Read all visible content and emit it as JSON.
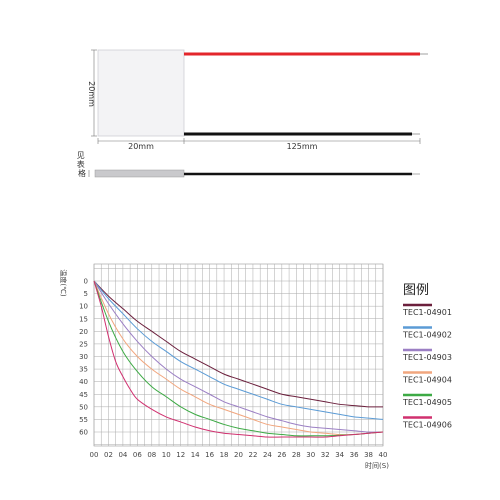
{
  "diagram": {
    "label_height": "20mm",
    "label_width": "20mm",
    "label_lead": "125mm",
    "label_thickness": "见表格",
    "colors": {
      "red_wire": "#e3262b",
      "black_wire": "#111111",
      "module": "#f3f3f5"
    }
  },
  "chart_data": {
    "type": "line",
    "xlabel": "时间(S)",
    "ylabel": "温度(℃)",
    "x_ticks": [
      "00",
      "02",
      "04",
      "06",
      "08",
      "10",
      "12",
      "14",
      "16",
      "18",
      "20",
      "22",
      "24",
      "26",
      "28",
      "30",
      "32",
      "34",
      "36",
      "38",
      "40"
    ],
    "y_ticks": [
      "0",
      "5",
      "10",
      "15",
      "20",
      "25",
      "30",
      "35",
      "40",
      "45",
      "50",
      "55",
      "60"
    ],
    "xlim": [
      0,
      40
    ],
    "ylim": [
      0,
      60
    ],
    "y_inverted": true,
    "grid": true,
    "legend_title": "图例",
    "legend_position": "right",
    "series": [
      {
        "name": "TEC1-04901",
        "color": "#6b1f3c",
        "x": [
          0,
          2,
          4,
          6,
          8,
          10,
          12,
          14,
          16,
          18,
          20,
          22,
          24,
          26,
          28,
          30,
          32,
          34,
          36,
          38,
          40
        ],
        "y": [
          0,
          6,
          11,
          16,
          20,
          24,
          28,
          31,
          34,
          37,
          39,
          41,
          43,
          45,
          46,
          47,
          48,
          49,
          49.5,
          50,
          50
        ]
      },
      {
        "name": "TEC1-04902",
        "color": "#5b9bd5",
        "x": [
          0,
          2,
          4,
          6,
          8,
          10,
          12,
          14,
          16,
          18,
          20,
          22,
          24,
          26,
          28,
          30,
          32,
          34,
          36,
          38,
          40
        ],
        "y": [
          0,
          7,
          13,
          19,
          24,
          28,
          32,
          35,
          38,
          41,
          43,
          45,
          47,
          49,
          50,
          51,
          52,
          53,
          54,
          54.5,
          55
        ]
      },
      {
        "name": "TEC1-04903",
        "color": "#9b7fc4",
        "x": [
          0,
          2,
          4,
          6,
          8,
          10,
          12,
          14,
          16,
          18,
          20,
          22,
          24,
          26,
          28,
          30,
          32,
          34,
          36,
          38,
          40
        ],
        "y": [
          0,
          9,
          17,
          24,
          30,
          35,
          39,
          42,
          45,
          48,
          50,
          52,
          54,
          55.5,
          57,
          58,
          58.5,
          59,
          59.5,
          60,
          60
        ]
      },
      {
        "name": "TEC1-04904",
        "color": "#f1a67e",
        "x": [
          0,
          2,
          4,
          6,
          8,
          10,
          12,
          14,
          16,
          18,
          20,
          22,
          24,
          26,
          28,
          30,
          32,
          34,
          36,
          38,
          40
        ],
        "y": [
          0,
          13,
          23,
          30,
          35,
          39,
          43,
          46,
          49,
          51,
          53,
          55,
          57,
          58,
          59,
          60,
          60.5,
          61,
          61,
          60.5,
          60
        ]
      },
      {
        "name": "TEC1-04905",
        "color": "#3daa45",
        "x": [
          0,
          2,
          4,
          6,
          8,
          10,
          12,
          14,
          16,
          18,
          20,
          22,
          24,
          26,
          28,
          30,
          32,
          34,
          36,
          38,
          40
        ],
        "y": [
          0,
          16,
          28,
          36,
          42,
          46,
          50,
          53,
          55,
          57,
          58.5,
          59.5,
          60.5,
          61,
          61.5,
          61.5,
          61.5,
          61.3,
          61,
          60.5,
          60
        ]
      },
      {
        "name": "TEC1-04906",
        "color": "#d0306f",
        "x": [
          0,
          1,
          2,
          3,
          4,
          5,
          6,
          8,
          10,
          12,
          14,
          16,
          18,
          20,
          22,
          24,
          26,
          28,
          30,
          32,
          34,
          36,
          38,
          40
        ],
        "y": [
          0,
          10,
          22,
          32,
          38,
          43,
          47,
          51,
          54,
          56,
          58,
          59.5,
          60.5,
          61,
          61.5,
          62,
          62,
          62,
          62,
          62,
          61.5,
          61,
          60.5,
          60
        ]
      }
    ]
  }
}
